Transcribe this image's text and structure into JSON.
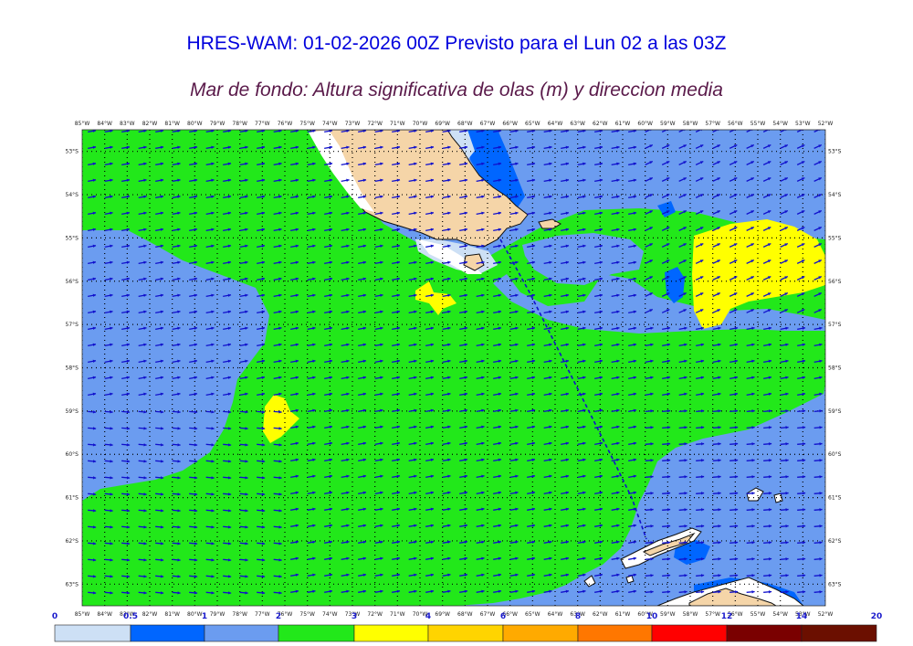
{
  "header": {
    "title": "HRES-WAM: 01-02-2026 00Z Previsto para el Lun 02 a las 03Z",
    "subtitle": "Mar de fondo: Altura significativa de olas (m) y direccion media"
  },
  "map": {
    "projection": "lat-lon",
    "lon_range": [
      -85,
      -52
    ],
    "lat_range": [
      -63.5,
      -52.5
    ],
    "lon_ticks": [
      "85°W",
      "84°W",
      "83°W",
      "82°W",
      "81°W",
      "80°W",
      "79°W",
      "78°W",
      "77°W",
      "76°W",
      "75°W",
      "74°W",
      "73°W",
      "72°W",
      "71°W",
      "70°W",
      "69°W",
      "68°W",
      "67°W",
      "66°W",
      "65°W",
      "64°W",
      "63°W",
      "62°W",
      "61°W",
      "60°W",
      "59°W",
      "58°W",
      "57°W",
      "56°W",
      "55°W",
      "54°W",
      "53°W",
      "52°W"
    ],
    "lat_ticks": [
      "53°S",
      "54°S",
      "55°S",
      "56°S",
      "57°S",
      "58°S",
      "59°S",
      "60°S",
      "61°S",
      "62°S",
      "63°S"
    ],
    "grid": true,
    "arrow_color": "#1010cc",
    "ship_track_color": "#1010cc",
    "land_color": "#f5d5a8",
    "sea_ice_color": "#ffffff"
  },
  "colorbar": {
    "units": "m",
    "labels": [
      "0",
      "0.5",
      "1",
      "2",
      "3",
      "4",
      "6",
      "8",
      "10",
      "12",
      "14",
      "20"
    ],
    "colors": [
      "#cde0f5",
      "#0066ff",
      "#6b9cf0",
      "#22e81a",
      "#ffff00",
      "#ffd400",
      "#ffaa00",
      "#ff7700",
      "#ff0000",
      "#7a0000",
      "#6b0f00",
      "#333333"
    ]
  }
}
